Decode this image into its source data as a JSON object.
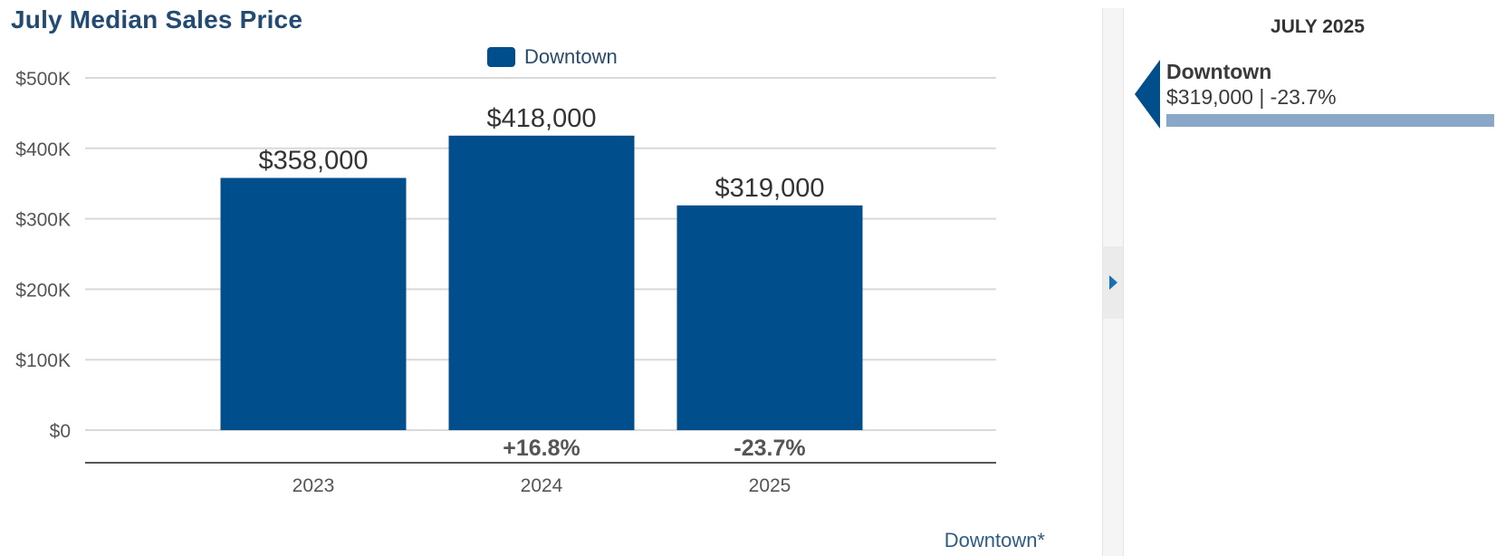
{
  "chart_data": {
    "type": "bar",
    "title": "July Median Sales Price",
    "categories": [
      "2023",
      "2024",
      "2025"
    ],
    "series": [
      {
        "name": "Downtown",
        "color": "#004f8c",
        "values": [
          358000,
          418000,
          319000
        ]
      }
    ],
    "value_labels": [
      "$358,000",
      "$418,000",
      "$319,000"
    ],
    "change_labels": [
      "",
      "+16.8%",
      "-23.7%"
    ],
    "y_ticks": [
      0,
      100000,
      200000,
      300000,
      400000,
      500000
    ],
    "y_tick_labels": [
      "$0",
      "$100K",
      "$200K",
      "$300K",
      "$400K",
      "$500K"
    ],
    "ylim": [
      0,
      500000
    ],
    "grid": true,
    "legend_position": "top-center",
    "footnote": "Downtown*"
  },
  "side_panel": {
    "heading": "JULY 2025",
    "items": [
      {
        "name": "Downtown",
        "summary": "$319,000 | -23.7%",
        "bar_fraction": 1.0,
        "color": "#89a7c6"
      }
    ]
  },
  "icons": {
    "collapse": "chevron-right-icon",
    "pointer": "pointer-left-icon"
  }
}
